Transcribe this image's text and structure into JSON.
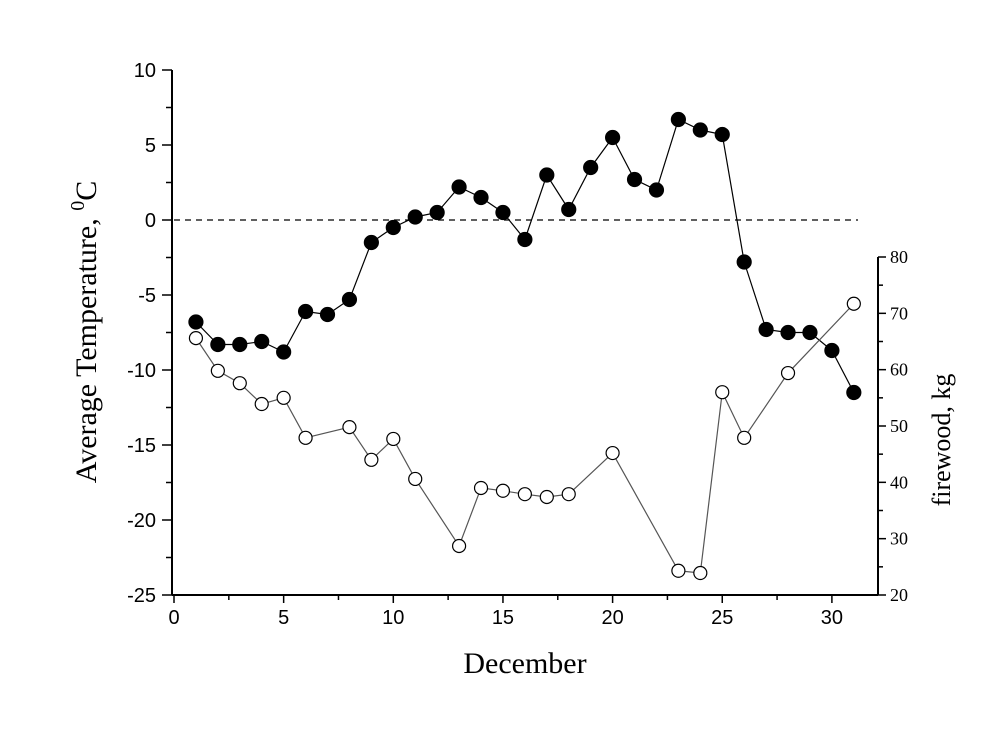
{
  "chart_data": {
    "type": "line",
    "xlabel": "December",
    "ylabel": "Average Temperature, ",
    "ylabel_sup": "0",
    "ylabel_unit": "C",
    "y2label": "firewood, kg",
    "xlim": [
      0,
      32
    ],
    "ylim": [
      -25,
      10
    ],
    "y2lim": [
      20,
      80
    ],
    "xticks": [
      0,
      5,
      10,
      15,
      20,
      25,
      30
    ],
    "yticks": [
      -25,
      -20,
      -15,
      -10,
      -5,
      0,
      5,
      10
    ],
    "y2ticks": [
      20,
      30,
      40,
      50,
      60,
      70,
      80
    ],
    "reference_line": {
      "y": 0,
      "style": "dashed"
    },
    "grid": false,
    "series": [
      {
        "axis": "left",
        "marker": "filled-circle",
        "color": "#000000",
        "x": [
          1,
          2,
          3,
          4,
          5,
          6,
          7,
          8,
          9,
          10,
          11,
          12,
          13,
          14,
          15,
          16,
          17,
          18,
          19,
          20,
          21,
          22,
          23,
          24,
          25,
          26,
          27,
          28,
          29,
          30,
          31
        ],
        "y": [
          -6.8,
          -8.3,
          -8.3,
          -8.1,
          -8.8,
          -6.1,
          -6.3,
          -5.3,
          -1.5,
          -0.5,
          0.2,
          0.5,
          2.2,
          1.5,
          0.5,
          -1.3,
          3.0,
          0.7,
          3.5,
          5.5,
          2.7,
          2.0,
          6.7,
          6.0,
          5.7,
          -2.8,
          -7.3,
          -7.5,
          -7.5,
          -8.7,
          -11.5
        ]
      },
      {
        "axis": "right",
        "marker": "open-circle",
        "color": "#555555",
        "x": [
          1,
          2,
          3,
          4,
          5,
          6,
          8,
          9,
          10,
          11,
          13,
          14,
          15,
          16,
          17,
          18,
          20,
          23,
          24,
          25,
          26,
          28,
          31
        ],
        "y": [
          65.6,
          59.8,
          57.6,
          53.9,
          55.0,
          47.9,
          49.8,
          44.0,
          47.7,
          40.6,
          28.7,
          39.0,
          38.5,
          37.9,
          37.4,
          37.9,
          45.2,
          24.3,
          23.9,
          56.0,
          47.9,
          59.4,
          71.7
        ]
      }
    ]
  }
}
